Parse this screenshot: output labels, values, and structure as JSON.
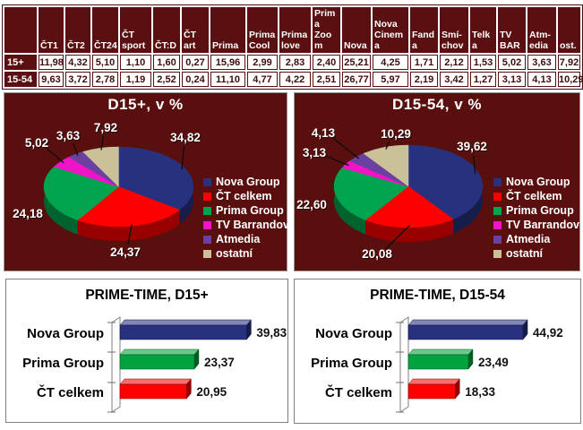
{
  "page": {
    "background": "#FFFFFF"
  },
  "colors": {
    "panel_maroon": "#5A0F0F",
    "table_header_bg": "#5A1010",
    "table_text": "#3D0D0D",
    "nova_blue": "#27317E",
    "ct_red": "#FF0000",
    "prima_green": "#00A44F",
    "barrandov_magenta": "#F013C8",
    "atmedia_purple": "#6A41A1",
    "ostatni_tan": "#CBC199"
  },
  "table": {
    "columns": [
      "",
      "ČT1",
      "ČT2",
      "ČT24",
      "ČT sport",
      "ČT:D",
      "ČT art",
      "Prima",
      "Prima Cool",
      "Prima love",
      "Prima Zoom",
      "Nova",
      "Nova Cinema",
      "Fanda",
      "Smí-chov",
      "Telka",
      "TV BAR",
      "Atm-edia",
      "ost."
    ],
    "rows": [
      {
        "label": "15+",
        "values": [
          "11,98",
          "4,32",
          "5,10",
          "1,10",
          "1,60",
          "0,27",
          "15,96",
          "2,99",
          "2,83",
          "2,40",
          "25,21",
          "4,25",
          "1,71",
          "2,12",
          "1,53",
          "5,02",
          "3,63",
          "7,92"
        ]
      },
      {
        "label": "15-54",
        "values": [
          "9,63",
          "3,72",
          "2,78",
          "1,19",
          "2,52",
          "0,24",
          "11,10",
          "4,77",
          "4,22",
          "2,51",
          "26,77",
          "5,97",
          "2,19",
          "3,42",
          "1,27",
          "3,13",
          "4,13",
          "10,29"
        ]
      }
    ]
  },
  "chart_data": [
    {
      "type": "pie",
      "title": "D15+, v %",
      "labels": [
        "Nova Group",
        "ČT celkem",
        "Prima Group",
        "TV Barrandov",
        "Atmedia",
        "ostatní"
      ],
      "values": [
        34.82,
        24.37,
        24.18,
        5.02,
        3.63,
        7.92
      ],
      "value_labels": [
        "34,82",
        "24,37",
        "24,18",
        "5,02",
        "3,63",
        "7,92"
      ],
      "colors": [
        "#27317E",
        "#FF0000",
        "#00A44F",
        "#F013C8",
        "#6A41A1",
        "#CBC199"
      ],
      "legend_position": "right",
      "background": "#5A0F0F",
      "style": "3d-pie"
    },
    {
      "type": "pie",
      "title": "D15-54, v %",
      "labels": [
        "Nova Group",
        "ČT celkem",
        "Prima Group",
        "TV Barrandov",
        "Atmedia",
        "ostatní"
      ],
      "values": [
        39.62,
        20.08,
        22.6,
        3.13,
        4.13,
        10.29
      ],
      "value_labels": [
        "39,62",
        "20,08",
        "22,60",
        "3,13",
        "4,13",
        "10,29"
      ],
      "colors": [
        "#27317E",
        "#FF0000",
        "#00A44F",
        "#F013C8",
        "#6A41A1",
        "#CBC199"
      ],
      "legend_position": "right",
      "background": "#5A0F0F",
      "style": "3d-pie"
    },
    {
      "type": "bar",
      "title": "PRIME-TIME, D15+",
      "orientation": "horizontal",
      "categories": [
        "Nova Group",
        "Prima Group",
        "ČT celkem"
      ],
      "values": [
        39.83,
        23.37,
        20.95
      ],
      "value_labels": [
        "39,83",
        "23,37",
        "20,95"
      ],
      "colors": [
        "#27317E",
        "#00A33D",
        "#FF0000"
      ],
      "xlim": [
        0,
        50
      ],
      "grid": false,
      "style": "3d-bar"
    },
    {
      "type": "bar",
      "title": "PRIME-TIME, D15-54",
      "orientation": "horizontal",
      "categories": [
        "Nova Group",
        "Prima Group",
        "ČT celkem"
      ],
      "values": [
        44.92,
        23.49,
        18.33
      ],
      "value_labels": [
        "44,92",
        "23,49",
        "18,33"
      ],
      "colors": [
        "#27317E",
        "#00A33D",
        "#FF0000"
      ],
      "xlim": [
        0,
        50
      ],
      "grid": false,
      "style": "3d-bar"
    }
  ]
}
